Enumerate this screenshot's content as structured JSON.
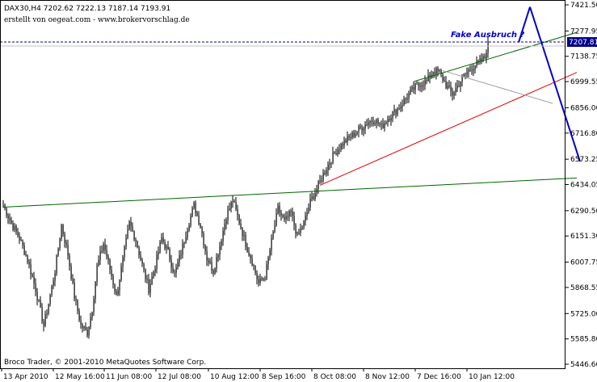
{
  "header": {
    "symbol_line": "DAX30,H4  7202.62 7222.13 7187.14 7193.91",
    "credit_line": "erstellt von oegeat.com - www.brokervorschlag.de"
  },
  "footer": {
    "copyright": "Broco Trader, © 2001-2010 MetaQuotes Software Corp."
  },
  "annotation": {
    "label": "Fake Ausbruch ?"
  },
  "price_tag": {
    "value": "7207.81"
  },
  "colors": {
    "candle": "#000000",
    "green_line": "#006400",
    "red_line": "#dd0000",
    "blue_line": "#0000cc",
    "gray_line": "#a0a0a0",
    "dashed_line": "#00008b",
    "price_tag_bg": "#00008b"
  },
  "chart_data": {
    "type": "candlestick",
    "ylim": [
      5446.6,
      7421.5
    ],
    "y_ticks": [
      "7421.50",
      "7277.95",
      "7138.75",
      "6999.55",
      "6856.00",
      "6716.80",
      "6573.25",
      "6434.05",
      "6290.50",
      "6151.30",
      "6007.75",
      "5868.55",
      "5725.00",
      "5585.80",
      "5446.60"
    ],
    "x_ticks": [
      "13 Apr 2010",
      "12 May 16:00",
      "11 Jun 08:00",
      "12 Jul 08:00",
      "10 Aug 12:00",
      "8 Sep 16:00",
      "8 Oct 08:00",
      "8 Nov 12:00",
      "7 Dec 16:00",
      "10 Jan 12:00"
    ],
    "price_path": [
      [
        0,
        6320
      ],
      [
        5,
        6220
      ],
      [
        10,
        6140
      ],
      [
        15,
        6020
      ],
      [
        20,
        5860
      ],
      [
        25,
        5660
      ],
      [
        28,
        5780
      ],
      [
        32,
        5960
      ],
      [
        36,
        6210
      ],
      [
        40,
        6050
      ],
      [
        44,
        5820
      ],
      [
        48,
        5660
      ],
      [
        52,
        5620
      ],
      [
        55,
        5750
      ],
      [
        58,
        5980
      ],
      [
        62,
        6110
      ],
      [
        66,
        5970
      ],
      [
        70,
        5820
      ],
      [
        74,
        6020
      ],
      [
        78,
        6220
      ],
      [
        82,
        6130
      ],
      [
        86,
        5990
      ],
      [
        90,
        5860
      ],
      [
        94,
        5990
      ],
      [
        98,
        6140
      ],
      [
        102,
        6060
      ],
      [
        106,
        5940
      ],
      [
        110,
        6060
      ],
      [
        114,
        6200
      ],
      [
        118,
        6320
      ],
      [
        122,
        6210
      ],
      [
        126,
        6030
      ],
      [
        130,
        5960
      ],
      [
        134,
        6100
      ],
      [
        138,
        6260
      ],
      [
        142,
        6350
      ],
      [
        146,
        6230
      ],
      [
        150,
        6110
      ],
      [
        154,
        6010
      ],
      [
        158,
        5890
      ],
      [
        162,
        5930
      ],
      [
        166,
        6120
      ],
      [
        170,
        6300
      ],
      [
        174,
        6230
      ],
      [
        178,
        6280
      ],
      [
        182,
        6150
      ],
      [
        186,
        6220
      ],
      [
        190,
        6340
      ],
      [
        194,
        6410
      ],
      [
        198,
        6490
      ],
      [
        202,
        6560
      ],
      [
        206,
        6620
      ],
      [
        210,
        6660
      ],
      [
        214,
        6690
      ],
      [
        218,
        6720
      ],
      [
        222,
        6750
      ],
      [
        226,
        6780
      ],
      [
        230,
        6790
      ],
      [
        234,
        6750
      ],
      [
        238,
        6800
      ],
      [
        242,
        6830
      ],
      [
        246,
        6870
      ],
      [
        250,
        6920
      ],
      [
        254,
        6960
      ],
      [
        258,
        6990
      ],
      [
        262,
        7000
      ],
      [
        266,
        7060
      ],
      [
        270,
        7050
      ],
      [
        274,
        6980
      ],
      [
        278,
        6930
      ],
      [
        282,
        6990
      ],
      [
        286,
        7040
      ],
      [
        290,
        7080
      ],
      [
        294,
        7100
      ],
      [
        298,
        7130
      ],
      [
        300,
        7220
      ]
    ],
    "trend_lines": [
      {
        "color": "green",
        "from": [
          0,
          6310
        ],
        "to": [
          355,
          6470
        ]
      },
      {
        "color": "red",
        "from": [
          196,
          6430
        ],
        "to": [
          355,
          7050
        ]
      },
      {
        "color": "green",
        "from": [
          254,
          7000
        ],
        "to": [
          355,
          7270
        ]
      },
      {
        "color": "gray",
        "from": [
          272,
          7060
        ],
        "to": [
          340,
          6880
        ]
      },
      {
        "color": "blue",
        "from": [
          319,
          7215
        ],
        "to": [
          326,
          7410
        ]
      },
      {
        "color": "blue",
        "from": [
          326,
          7410
        ],
        "to": [
          357,
          6560
        ]
      }
    ]
  }
}
